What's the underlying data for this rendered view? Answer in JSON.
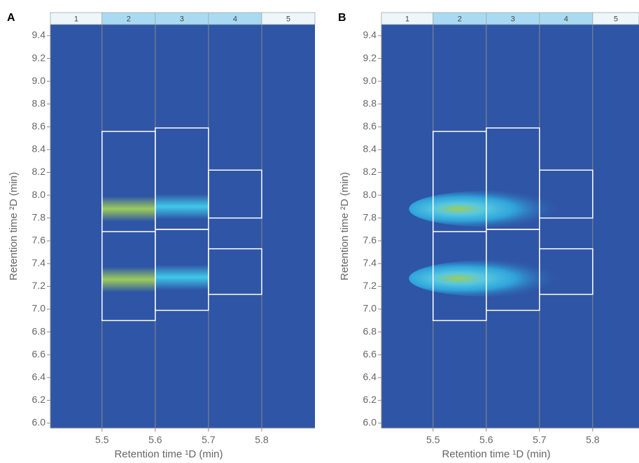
{
  "chart_data": [
    {
      "type": "heatmap",
      "panel": "A",
      "xlabel": "Retention time ¹D (min)",
      "ylabel": "Retention time ²D (min)",
      "background": "#2f55a6",
      "binned": true,
      "xlim": [
        5.403,
        5.9
      ],
      "xticks": [
        5.5,
        5.6,
        5.7,
        5.8
      ],
      "ylim": [
        5.957,
        9.498
      ],
      "yticks": [
        {
          "value": 6,
          "label": "6.0"
        },
        {
          "value": 6.2,
          "label": "6.2"
        },
        {
          "value": 6.4,
          "label": "6.4"
        },
        {
          "value": 6.6,
          "label": "6.6"
        },
        {
          "value": 6.8,
          "label": "6.8"
        },
        {
          "value": 7,
          "label": "7.0"
        },
        {
          "value": 7.2,
          "label": "7.2"
        },
        {
          "value": 7.4,
          "label": "7.4"
        },
        {
          "value": 7.6,
          "label": "7.6"
        },
        {
          "value": 7.8,
          "label": "7.8"
        },
        {
          "value": 8,
          "label": "8.0"
        },
        {
          "value": 8.2,
          "label": "8.2"
        },
        {
          "value": 8.4,
          "label": "8.4"
        },
        {
          "value": 8.6,
          "label": "8.6"
        },
        {
          "value": 8.8,
          "label": "8.8"
        },
        {
          "value": 9,
          "label": "9.0"
        },
        {
          "value": 9.2,
          "label": "9.2"
        },
        {
          "value": 9.4,
          "label": "9.4"
        }
      ],
      "fractions": [
        "1",
        "2",
        "3",
        "4",
        "5"
      ],
      "fraction_edges": [
        5.5,
        5.6,
        5.7,
        5.8
      ],
      "selected": [
        false,
        true,
        true,
        true,
        false
      ],
      "regions": [
        {
          "x0": 5.5,
          "x1": 5.6,
          "y0": 7.68,
          "y1": 8.56
        },
        {
          "x0": 5.6,
          "x1": 5.7,
          "y0": 7.7,
          "y1": 8.59
        },
        {
          "x0": 5.7,
          "x1": 5.8,
          "y0": 7.8,
          "y1": 8.22
        },
        {
          "x0": 5.5,
          "x1": 5.6,
          "y0": 6.9,
          "y1": 7.68
        },
        {
          "x0": 5.6,
          "x1": 5.7,
          "y0": 6.99,
          "y1": 7.7
        },
        {
          "x0": 5.7,
          "x1": 5.8,
          "y0": 7.13,
          "y1": 7.53
        }
      ],
      "peaks": [
        {
          "x": 5.55,
          "y": 7.88,
          "color": "#9ccc5c"
        },
        {
          "x": 5.65,
          "y": 7.9,
          "color": "#40c8ea"
        },
        {
          "x": 5.55,
          "y": 7.26,
          "color": "#9ccc5c"
        },
        {
          "x": 5.65,
          "y": 7.28,
          "color": "#40c8ea"
        }
      ]
    },
    {
      "type": "heatmap",
      "panel": "B",
      "xlabel": "Retention time ¹D (min)",
      "ylabel": "Retention time ²D (min)",
      "background": "#2f55a6",
      "binned": false,
      "xlim": [
        5.403,
        5.887
      ],
      "xticks": [
        5.5,
        5.6,
        5.7,
        5.8
      ],
      "ylim": [
        5.957,
        9.498
      ],
      "yticks": [
        {
          "value": 6,
          "label": "6.0"
        },
        {
          "value": 6.2,
          "label": "6.2"
        },
        {
          "value": 6.4,
          "label": "6.4"
        },
        {
          "value": 6.6,
          "label": "6.6"
        },
        {
          "value": 6.8,
          "label": "6.8"
        },
        {
          "value": 7,
          "label": "7.0"
        },
        {
          "value": 7.2,
          "label": "7.2"
        },
        {
          "value": 7.4,
          "label": "7.4"
        },
        {
          "value": 7.6,
          "label": "7.6"
        },
        {
          "value": 7.8,
          "label": "7.8"
        },
        {
          "value": 8,
          "label": "8.0"
        },
        {
          "value": 8.2,
          "label": "8.2"
        },
        {
          "value": 8.4,
          "label": "8.4"
        },
        {
          "value": 8.6,
          "label": "8.6"
        },
        {
          "value": 8.8,
          "label": "8.8"
        },
        {
          "value": 9,
          "label": "9.0"
        },
        {
          "value": 9.2,
          "label": "9.2"
        },
        {
          "value": 9.4,
          "label": "9.4"
        }
      ],
      "fractions": [
        "1",
        "2",
        "3",
        "4",
        "5"
      ],
      "fraction_edges": [
        5.5,
        5.6,
        5.7,
        5.8
      ],
      "selected": [
        false,
        true,
        true,
        true,
        false
      ],
      "regions": [
        {
          "x0": 5.5,
          "x1": 5.6,
          "y0": 7.68,
          "y1": 8.56
        },
        {
          "x0": 5.6,
          "x1": 5.7,
          "y0": 7.7,
          "y1": 8.59
        },
        {
          "x0": 5.7,
          "x1": 5.8,
          "y0": 7.8,
          "y1": 8.22
        },
        {
          "x0": 5.5,
          "x1": 5.6,
          "y0": 6.9,
          "y1": 7.68
        },
        {
          "x0": 5.6,
          "x1": 5.7,
          "y0": 6.99,
          "y1": 7.7
        },
        {
          "x0": 5.7,
          "x1": 5.8,
          "y0": 7.13,
          "y1": 7.53
        }
      ],
      "peaks": [
        {
          "x": 5.56,
          "y": 7.88,
          "color": "#9ccc5c"
        },
        {
          "x": 5.56,
          "y": 7.27,
          "color": "#9ccc5c"
        }
      ]
    }
  ]
}
